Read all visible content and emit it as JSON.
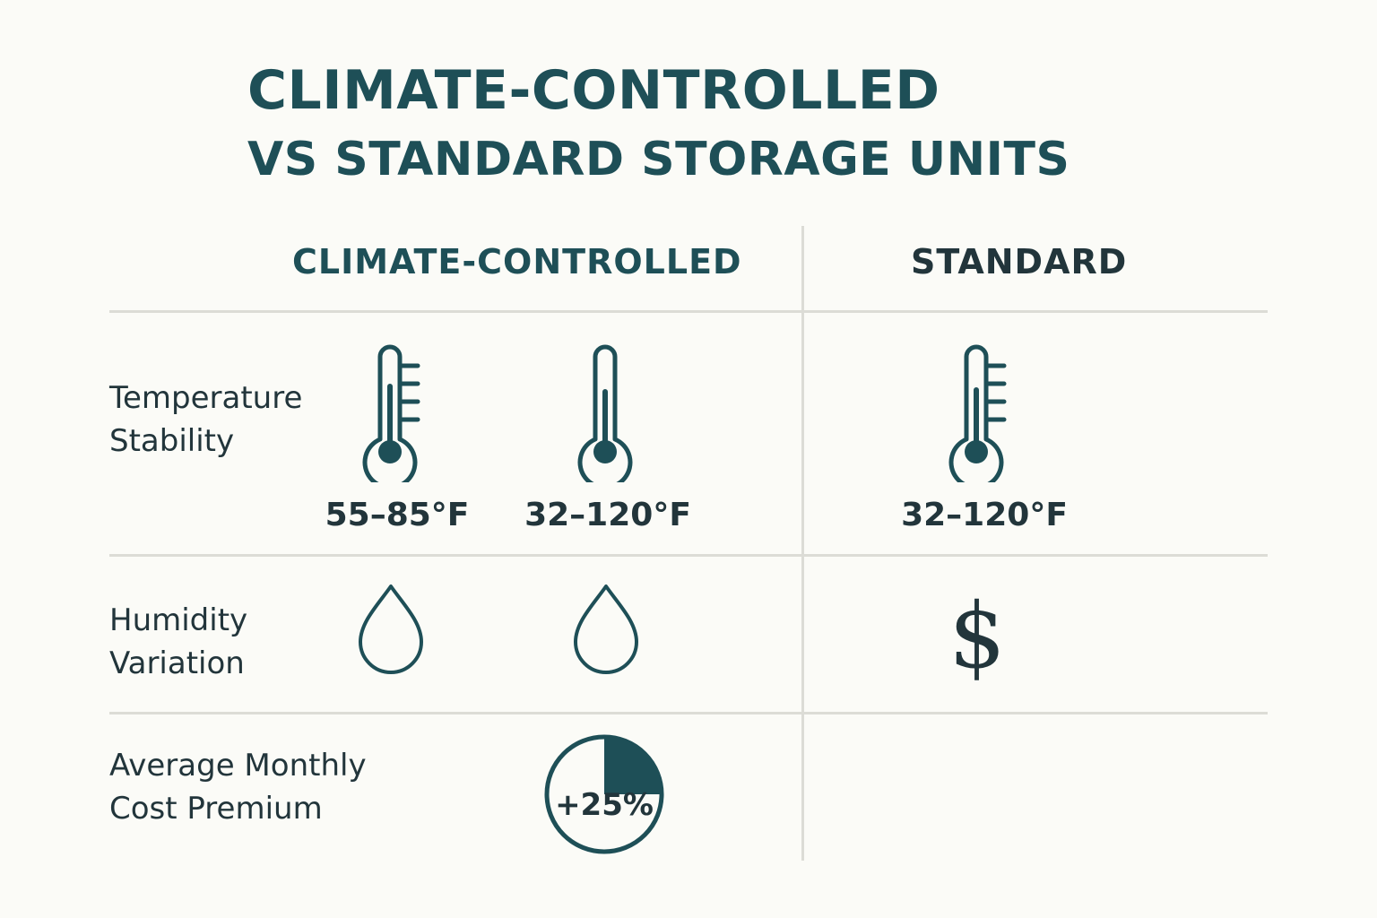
{
  "title": {
    "line1": "CLIMATE-CONTROLLED",
    "line2": "VS STANDARD STORAGE UNITS"
  },
  "columns": {
    "climate_controlled": "CLIMATE-CONTROLLED",
    "standard": "STANDARD"
  },
  "rows": {
    "temperature": {
      "label_line1": "Temperature",
      "label_line2": "Stability",
      "cc_value_1": "55–85°F",
      "cc_value_2": "32–120°F",
      "std_value": "32–120°F"
    },
    "humidity": {
      "label_line1": "Humidity",
      "label_line2": "Variation",
      "std_symbol": "$"
    },
    "cost": {
      "label_line1": "Average Monthly",
      "label_line2": "Cost Premium",
      "premium": "+25%",
      "premium_fraction": 0.25
    }
  },
  "colors": {
    "accent": "#1e4f57",
    "text": "#22353b",
    "divider": "#dcdcd6",
    "background": "#fbfbf7"
  },
  "icons": {
    "temperature": "thermometer-icon",
    "humidity": "water-drop-icon",
    "cost": "pie-icon"
  }
}
